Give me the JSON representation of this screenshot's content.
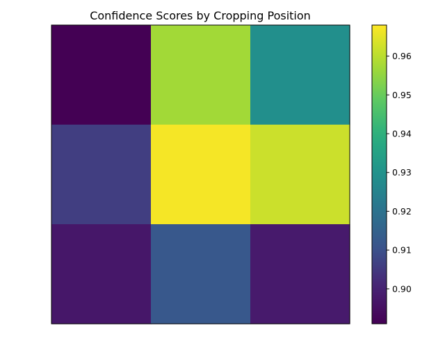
{
  "chart_data": {
    "type": "heatmap",
    "title": "Confidence Scores by Cropping Position",
    "xlabel": "",
    "ylabel": "",
    "rows": 3,
    "cols": 3,
    "values": [
      [
        0.891,
        0.957,
        0.929
      ],
      [
        0.906,
        0.967,
        0.962
      ],
      [
        0.897,
        0.912,
        0.898
      ]
    ],
    "vmin": 0.891,
    "vmax": 0.968,
    "colormap": "viridis",
    "colorbar": {
      "ticks": [
        0.9,
        0.91,
        0.92,
        0.93,
        0.94,
        0.95,
        0.96
      ],
      "tick_labels": [
        "0.90",
        "0.91",
        "0.92",
        "0.93",
        "0.94",
        "0.95",
        "0.96"
      ],
      "placement": "right"
    },
    "axes_ticks_visible": false,
    "grid": false
  }
}
